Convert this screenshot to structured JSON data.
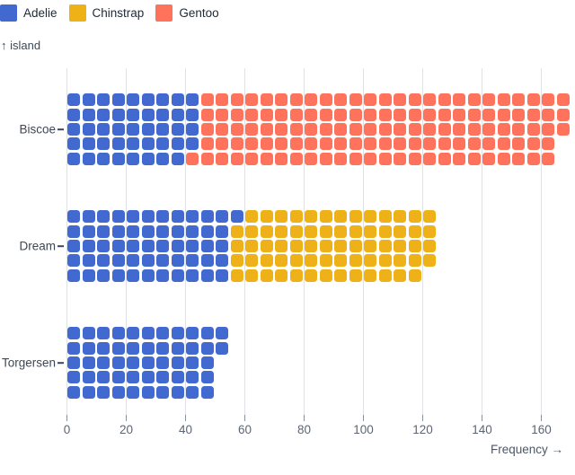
{
  "legend": {
    "items": [
      {
        "label": "Adelie",
        "color": "#4269d0"
      },
      {
        "label": "Chinstrap",
        "color": "#efb118"
      },
      {
        "label": "Gentoo",
        "color": "#ff725c"
      }
    ]
  },
  "axes": {
    "y_label": "↑ island",
    "x_label": "Frequency →",
    "x_ticks": [
      0,
      20,
      40,
      60,
      80,
      100,
      120,
      140,
      160
    ]
  },
  "chart_data": {
    "type": "bar",
    "subtype": "waffle",
    "orientation": "horizontal",
    "title": "",
    "xlabel": "Frequency →",
    "ylabel": "↑ island",
    "xlim": [
      0,
      171
    ],
    "x_ticks": [
      0,
      20,
      40,
      60,
      80,
      100,
      120,
      140,
      160
    ],
    "grid": true,
    "legend_position": "top-left",
    "rows_per_band": 5,
    "units_per_cell": 1,
    "categories": [
      "Biscoe",
      "Dream",
      "Torgersen"
    ],
    "series": [
      {
        "name": "Adelie",
        "color": "#4269d0",
        "values": [
          44,
          56,
          52
        ]
      },
      {
        "name": "Chinstrap",
        "color": "#efb118",
        "values": [
          0,
          68,
          0
        ]
      },
      {
        "name": "Gentoo",
        "color": "#ff725c",
        "values": [
          124,
          0,
          0
        ]
      }
    ],
    "totals": [
      168,
      124,
      52
    ]
  },
  "style": {
    "gridline_color": "#e0e2e6",
    "tick_mark_color": "#8b929c",
    "tick_label_color": "#5b6573",
    "category_label_color": "#3e4754",
    "legend_text_color": "#212b36"
  }
}
